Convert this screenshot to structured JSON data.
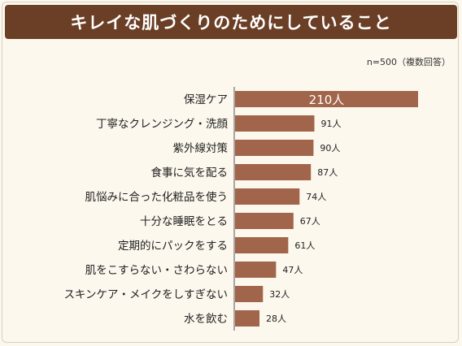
{
  "title": "キレイな肌づくりのためにしていること",
  "note": "n=500（複数回答）",
  "colors": {
    "bar": "#a0654a",
    "header": "#6b3f26",
    "axis": "#555555",
    "background": "#fdf8ee"
  },
  "chart_data": {
    "type": "bar",
    "orientation": "horizontal",
    "title": "キレイな肌づくりのためにしていること",
    "categories": [
      "保湿ケア",
      "丁寧なクレンジング・洗顔",
      "紫外線対策",
      "食事に気を配る",
      "肌悩みに合った化粧品を使う",
      "十分な睡眠をとる",
      "定期的にパックをする",
      "肌をこすらない・さわらない",
      "スキンケア・メイクをしすぎない",
      "水を飲む"
    ],
    "values": [
      210,
      91,
      90,
      87,
      74,
      67,
      61,
      47,
      32,
      28
    ],
    "labels": [
      "210人",
      "91人",
      "90人",
      "87人",
      "74人",
      "67人",
      "61人",
      "47人",
      "32人",
      "28人"
    ],
    "xlim": [
      0,
      210
    ],
    "grid": false,
    "legend": "none"
  }
}
